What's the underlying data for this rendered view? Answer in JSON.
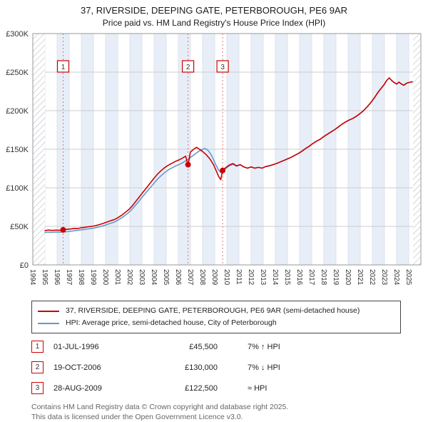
{
  "title": "37, RIVERSIDE, DEEPING GATE, PETERBOROUGH, PE6 9AR",
  "subtitle": "Price paid vs. HM Land Registry's House Price Index (HPI)",
  "chart_data": {
    "type": "line",
    "x_min": 1994,
    "x_max": 2026,
    "y_max": 300000,
    "stripe_color": "#e8eef7",
    "grid_color": "#cccccc",
    "y_ticks": [
      {
        "value": 0,
        "label": "£0"
      },
      {
        "value": 50000,
        "label": "£50K"
      },
      {
        "value": 100000,
        "label": "£100K"
      },
      {
        "value": 150000,
        "label": "£150K"
      },
      {
        "value": 200000,
        "label": "£200K"
      },
      {
        "value": 250000,
        "label": "£250K"
      },
      {
        "value": 300000,
        "label": "£300K"
      }
    ],
    "x_ticks": [
      1994,
      1995,
      1996,
      1997,
      1998,
      1999,
      2000,
      2001,
      2002,
      2003,
      2004,
      2005,
      2006,
      2007,
      2008,
      2009,
      2010,
      2011,
      2012,
      2013,
      2014,
      2015,
      2016,
      2017,
      2018,
      2019,
      2020,
      2021,
      2022,
      2023,
      2024,
      2025
    ],
    "hatch_regions": [
      [
        1994,
        1995
      ],
      [
        2025.35,
        2026
      ]
    ],
    "sales": [
      {
        "label": "1",
        "x": 1996.5,
        "y": 45500
      },
      {
        "label": "2",
        "x": 2006.8,
        "y": 130000
      },
      {
        "label": "3",
        "x": 2009.65,
        "y": 122500
      }
    ],
    "series": [
      {
        "name": "37, RIVERSIDE, DEEPING GATE, PETERBOROUGH, PE6 9AR (semi-detached house)",
        "color": "#cc0000",
        "points": [
          [
            1995,
            44500
          ],
          [
            1995.3,
            45200
          ],
          [
            1995.6,
            44700
          ],
          [
            1995.9,
            45100
          ],
          [
            1996.2,
            44800
          ],
          [
            1996.5,
            45500
          ],
          [
            1996.8,
            46100
          ],
          [
            1997.1,
            46600
          ],
          [
            1997.4,
            47300
          ],
          [
            1997.7,
            47100
          ],
          [
            1998,
            48200
          ],
          [
            1998.3,
            48800
          ],
          [
            1998.6,
            49500
          ],
          [
            1998.9,
            50100
          ],
          [
            1999.2,
            51000
          ],
          [
            1999.5,
            52300
          ],
          [
            1999.8,
            53800
          ],
          [
            2000.1,
            55600
          ],
          [
            2000.4,
            57200
          ],
          [
            2000.7,
            58600
          ],
          [
            2001,
            61000
          ],
          [
            2001.3,
            64200
          ],
          [
            2001.6,
            67800
          ],
          [
            2001.9,
            71500
          ],
          [
            2002.2,
            76500
          ],
          [
            2002.5,
            82500
          ],
          [
            2002.8,
            88500
          ],
          [
            2003.1,
            94500
          ],
          [
            2003.4,
            100500
          ],
          [
            2003.7,
            106500
          ],
          [
            2004,
            112500
          ],
          [
            2004.3,
            118000
          ],
          [
            2004.6,
            122500
          ],
          [
            2004.9,
            126500
          ],
          [
            2005.2,
            129500
          ],
          [
            2005.5,
            132000
          ],
          [
            2005.8,
            134500
          ],
          [
            2006.1,
            136500
          ],
          [
            2006.4,
            139000
          ],
          [
            2006.6,
            141000
          ],
          [
            2006.8,
            130000
          ],
          [
            2007,
            146500
          ],
          [
            2007.3,
            150500
          ],
          [
            2007.5,
            152500
          ],
          [
            2007.7,
            150500
          ],
          [
            2008,
            147000
          ],
          [
            2008.3,
            143000
          ],
          [
            2008.6,
            137500
          ],
          [
            2008.9,
            130000
          ],
          [
            2009.1,
            123000
          ],
          [
            2009.3,
            115500
          ],
          [
            2009.5,
            110500
          ],
          [
            2009.65,
            122500
          ],
          [
            2009.9,
            126000
          ],
          [
            2010.2,
            129500
          ],
          [
            2010.5,
            131500
          ],
          [
            2010.8,
            128500
          ],
          [
            2011.1,
            130000
          ],
          [
            2011.4,
            127000
          ],
          [
            2011.7,
            125500
          ],
          [
            2012,
            127000
          ],
          [
            2012.3,
            125500
          ],
          [
            2012.6,
            126500
          ],
          [
            2012.9,
            125500
          ],
          [
            2013.2,
            127500
          ],
          [
            2013.5,
            128500
          ],
          [
            2013.8,
            130000
          ],
          [
            2014.1,
            131500
          ],
          [
            2014.4,
            133500
          ],
          [
            2014.7,
            135500
          ],
          [
            2015,
            137500
          ],
          [
            2015.3,
            139500
          ],
          [
            2015.6,
            142000
          ],
          [
            2015.9,
            144500
          ],
          [
            2016.2,
            147500
          ],
          [
            2016.5,
            151000
          ],
          [
            2016.8,
            154000
          ],
          [
            2017.1,
            157500
          ],
          [
            2017.4,
            160500
          ],
          [
            2017.7,
            163000
          ],
          [
            2018,
            166500
          ],
          [
            2018.3,
            169500
          ],
          [
            2018.6,
            172500
          ],
          [
            2018.9,
            175500
          ],
          [
            2019.2,
            179000
          ],
          [
            2019.5,
            182500
          ],
          [
            2019.8,
            185500
          ],
          [
            2020.1,
            188000
          ],
          [
            2020.4,
            190000
          ],
          [
            2020.7,
            193000
          ],
          [
            2021,
            196500
          ],
          [
            2021.3,
            200500
          ],
          [
            2021.6,
            205500
          ],
          [
            2021.9,
            211000
          ],
          [
            2022.2,
            217500
          ],
          [
            2022.5,
            224500
          ],
          [
            2022.8,
            230500
          ],
          [
            2023,
            234500
          ],
          [
            2023.2,
            239500
          ],
          [
            2023.4,
            242500
          ],
          [
            2023.6,
            239000
          ],
          [
            2023.8,
            236500
          ],
          [
            2024,
            234500
          ],
          [
            2024.2,
            237000
          ],
          [
            2024.4,
            234500
          ],
          [
            2024.6,
            233000
          ],
          [
            2024.8,
            235500
          ],
          [
            2025,
            236500
          ],
          [
            2025.3,
            237500
          ]
        ]
      },
      {
        "name": "HPI: Average price, semi-detached house, City of Peterborough",
        "color": "#6699cc",
        "points": [
          [
            1995,
            42000
          ],
          [
            1995.3,
            42500
          ],
          [
            1995.6,
            42200
          ],
          [
            1995.9,
            42600
          ],
          [
            1996.2,
            42400
          ],
          [
            1996.5,
            42600
          ],
          [
            1996.8,
            43100
          ],
          [
            1997.1,
            43700
          ],
          [
            1997.4,
            44300
          ],
          [
            1997.7,
            44800
          ],
          [
            1998,
            45500
          ],
          [
            1998.3,
            46100
          ],
          [
            1998.6,
            46800
          ],
          [
            1998.9,
            47400
          ],
          [
            1999.2,
            48300
          ],
          [
            1999.5,
            49400
          ],
          [
            1999.8,
            50700
          ],
          [
            2000.1,
            52300
          ],
          [
            2000.4,
            53900
          ],
          [
            2000.7,
            55400
          ],
          [
            2001,
            57800
          ],
          [
            2001.3,
            60800
          ],
          [
            2001.6,
            64200
          ],
          [
            2001.9,
            67800
          ],
          [
            2002.2,
            72500
          ],
          [
            2002.5,
            78000
          ],
          [
            2002.8,
            83500
          ],
          [
            2003.1,
            89500
          ],
          [
            2003.4,
            95000
          ],
          [
            2003.7,
            100500
          ],
          [
            2004,
            106000
          ],
          [
            2004.3,
            111500
          ],
          [
            2004.6,
            116000
          ],
          [
            2004.9,
            120000
          ],
          [
            2005.2,
            123500
          ],
          [
            2005.5,
            126000
          ],
          [
            2005.8,
            128500
          ],
          [
            2006.1,
            130500
          ],
          [
            2006.4,
            133000
          ],
          [
            2006.8,
            137000
          ],
          [
            2007.1,
            140500
          ],
          [
            2007.4,
            144000
          ],
          [
            2007.7,
            147500
          ],
          [
            2008,
            150000
          ],
          [
            2008.2,
            151000
          ],
          [
            2008.45,
            148500
          ],
          [
            2008.7,
            143000
          ],
          [
            2008.9,
            136500
          ],
          [
            2009.1,
            129500
          ],
          [
            2009.3,
            123500
          ],
          [
            2009.5,
            119500
          ],
          [
            2009.65,
            122000
          ],
          [
            2009.9,
            125000
          ],
          [
            2010.2,
            128500
          ],
          [
            2010.5,
            130500
          ],
          [
            2010.8,
            128000
          ],
          [
            2011.1,
            130000
          ],
          [
            2011.4,
            127000
          ],
          [
            2011.7,
            125500
          ],
          [
            2012,
            127000
          ],
          [
            2012.3,
            125500
          ],
          [
            2012.6,
            126500
          ],
          [
            2012.9,
            125500
          ],
          [
            2013.2,
            127500
          ],
          [
            2013.5,
            128500
          ],
          [
            2013.8,
            130000
          ],
          [
            2014.1,
            131500
          ],
          [
            2014.4,
            133500
          ],
          [
            2014.7,
            135500
          ],
          [
            2015,
            137500
          ],
          [
            2015.3,
            139500
          ],
          [
            2015.6,
            142000
          ],
          [
            2015.9,
            144500
          ],
          [
            2016.2,
            147500
          ],
          [
            2016.5,
            151000
          ],
          [
            2016.8,
            154000
          ],
          [
            2017.1,
            157500
          ],
          [
            2017.4,
            160500
          ],
          [
            2017.7,
            163000
          ],
          [
            2018,
            166500
          ],
          [
            2018.3,
            169500
          ],
          [
            2018.6,
            172500
          ],
          [
            2018.9,
            175500
          ],
          [
            2019.2,
            179000
          ],
          [
            2019.5,
            182500
          ],
          [
            2019.8,
            185500
          ],
          [
            2020.1,
            188000
          ],
          [
            2020.4,
            190000
          ],
          [
            2020.7,
            193000
          ],
          [
            2021,
            196500
          ],
          [
            2021.3,
            200500
          ],
          [
            2021.6,
            205500
          ],
          [
            2021.9,
            211000
          ],
          [
            2022.2,
            217500
          ],
          [
            2022.5,
            224500
          ],
          [
            2022.8,
            230500
          ],
          [
            2023,
            234500
          ],
          [
            2023.2,
            239500
          ],
          [
            2023.4,
            242500
          ],
          [
            2023.6,
            239000
          ],
          [
            2023.8,
            236500
          ],
          [
            2024,
            234500
          ],
          [
            2024.2,
            237000
          ],
          [
            2024.4,
            234500
          ],
          [
            2024.6,
            233000
          ],
          [
            2024.8,
            235500
          ],
          [
            2025,
            236500
          ],
          [
            2025.3,
            237500
          ]
        ]
      }
    ]
  },
  "legend": {
    "items": [
      {
        "label": "37, RIVERSIDE, DEEPING GATE, PETERBOROUGH, PE6 9AR (semi-detached house)"
      },
      {
        "label": "HPI: Average price, semi-detached house, City of Peterborough"
      }
    ]
  },
  "transactions": [
    {
      "n": "1",
      "date": "01-JUL-1996",
      "price": "£45,500",
      "hpi": "7% ↑ HPI"
    },
    {
      "n": "2",
      "date": "19-OCT-2006",
      "price": "£130,000",
      "hpi": "7% ↓ HPI"
    },
    {
      "n": "3",
      "date": "28-AUG-2009",
      "price": "£122,500",
      "hpi": "≈ HPI"
    }
  ],
  "footer": {
    "line1": "Contains HM Land Registry data © Crown copyright and database right 2025.",
    "line2": "This data is licensed under the Open Government Licence v3.0."
  }
}
